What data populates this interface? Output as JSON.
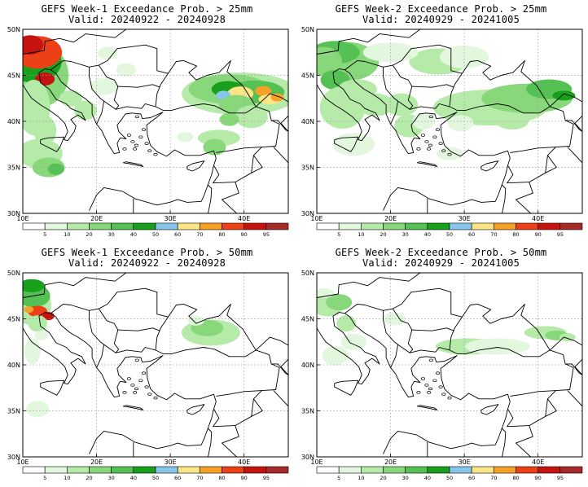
{
  "panels": [
    {
      "title": "GEFS Week-1 Exceedance Prob. > 25mm",
      "valid": "Valid: 20240922 - 20240928"
    },
    {
      "title": "GEFS Week-2 Exceedance Prob. > 25mm",
      "valid": "Valid: 20240929 - 20241005"
    },
    {
      "title": "GEFS Week-1 Exceedance Prob. > 50mm",
      "valid": "Valid: 20240922 - 20240928"
    },
    {
      "title": "GEFS Week-2 Exceedance Prob. > 50mm",
      "valid": "Valid: 20240929 - 20241005"
    }
  ],
  "axes": {
    "lat_labels": [
      "50N",
      "45N",
      "40N",
      "35N",
      "30N"
    ],
    "lon_labels": [
      "10E",
      "20E",
      "30E",
      "40E"
    ]
  },
  "colorbar": {
    "labels": [
      "5",
      "10",
      "20",
      "30",
      "40",
      "50",
      "60",
      "70",
      "80",
      "90",
      "95"
    ],
    "colors": [
      "#ffffff",
      "#e2f7de",
      "#b6eaa9",
      "#88d77a",
      "#55c053",
      "#18a01c",
      "#87c5ea",
      "#fbe585",
      "#f7a126",
      "#ed4016",
      "#c51410",
      "#a82a28"
    ]
  }
}
